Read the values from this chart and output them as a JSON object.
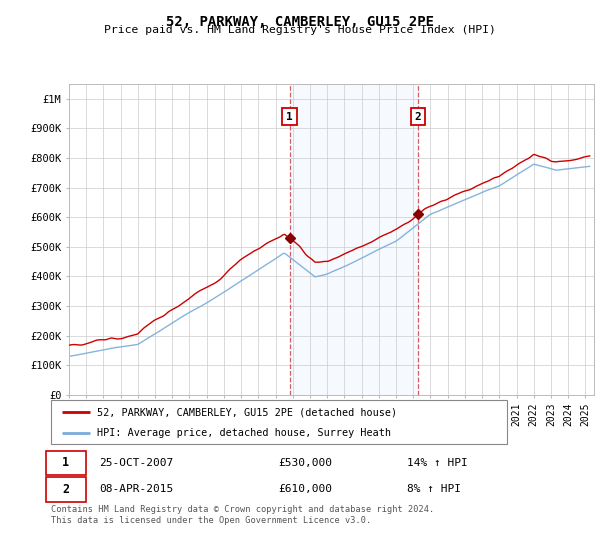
{
  "title": "52, PARKWAY, CAMBERLEY, GU15 2PE",
  "subtitle": "Price paid vs. HM Land Registry's House Price Index (HPI)",
  "ylabel_ticks": [
    "£0",
    "£100K",
    "£200K",
    "£300K",
    "£400K",
    "£500K",
    "£600K",
    "£700K",
    "£800K",
    "£900K",
    "£1M"
  ],
  "ytick_values": [
    0,
    100000,
    200000,
    300000,
    400000,
    500000,
    600000,
    700000,
    800000,
    900000,
    1000000
  ],
  "ylim": [
    0,
    1050000
  ],
  "xlim_start": 1995.0,
  "xlim_end": 2025.5,
  "marker1_x": 2007.81,
  "marker1_y": 530000,
  "marker2_x": 2015.27,
  "marker2_y": 610000,
  "marker1_date": "25-OCT-2007",
  "marker1_price": "£530,000",
  "marker1_hpi": "14% ↑ HPI",
  "marker2_date": "08-APR-2015",
  "marker2_price": "£610,000",
  "marker2_hpi": "8% ↑ HPI",
  "line1_color": "#cc0000",
  "line2_color": "#7aabda",
  "shade_color": "#ddeeff",
  "grid_color": "#cccccc",
  "background_color": "#ffffff",
  "footer_text": "Contains HM Land Registry data © Crown copyright and database right 2024.\nThis data is licensed under the Open Government Licence v3.0.",
  "legend1_label": "52, PARKWAY, CAMBERLEY, GU15 2PE (detached house)",
  "legend2_label": "HPI: Average price, detached house, Surrey Heath"
}
